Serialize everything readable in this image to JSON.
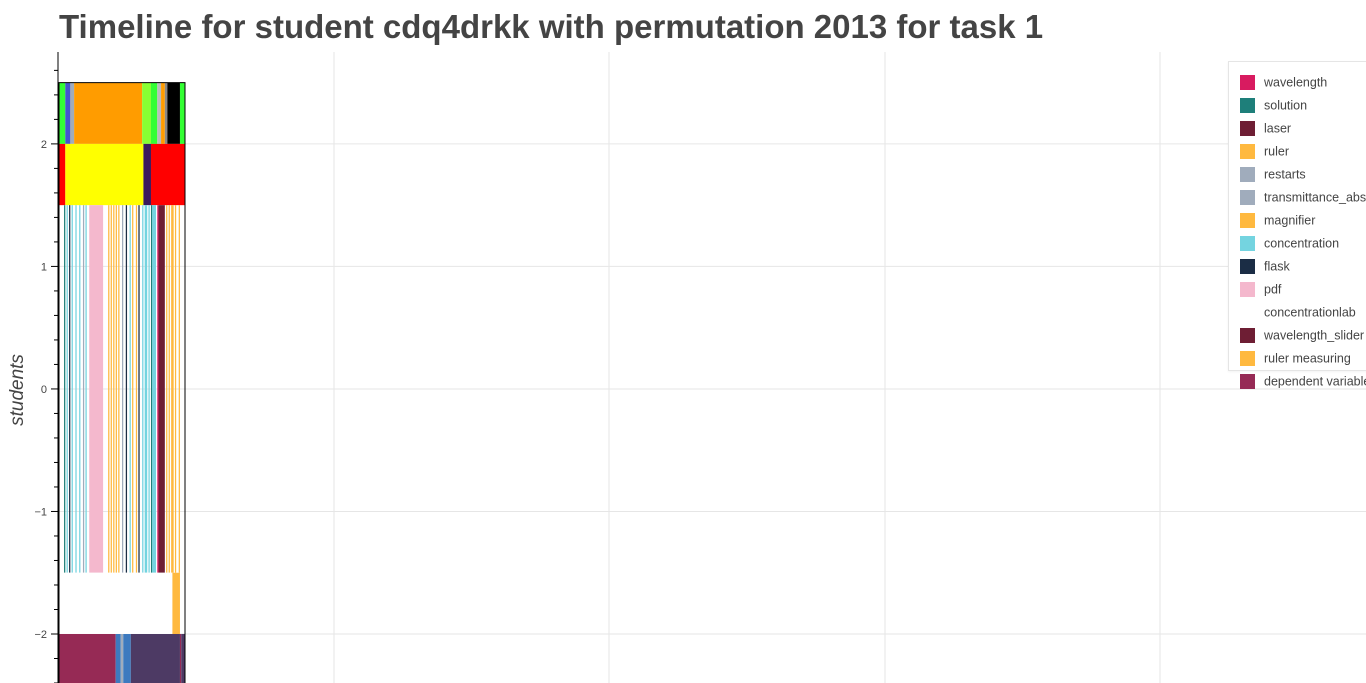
{
  "chart_data": {
    "type": "timeline",
    "title": "Timeline for student cdq4drkk with permutation 2013 for task 1",
    "ylabel": "students",
    "xlabel": "",
    "ylim": [
      -2.4,
      2.75
    ],
    "yticks": [
      2,
      1,
      0,
      -1,
      -2
    ],
    "ytick_labels": [
      "2",
      "1",
      "0",
      "−1",
      "−2"
    ],
    "grid": true,
    "legend_position": "top-right",
    "legend": [
      {
        "label": "wavelength",
        "color": "#d81b60"
      },
      {
        "label": "solution",
        "color": "#1e7f7a"
      },
      {
        "label": "laser",
        "color": "#6e1e34"
      },
      {
        "label": "ruler",
        "color": "#ffb93f"
      },
      {
        "label": "restarts",
        "color": "#a0acbc"
      },
      {
        "label": "transmittance_abs",
        "color": "#a0acbc"
      },
      {
        "label": "magnifier",
        "color": "#ffb93f"
      },
      {
        "label": "concentration",
        "color": "#74d4e0"
      },
      {
        "label": "flask",
        "color": "#1b2d45"
      },
      {
        "label": "pdf",
        "color": "#f4b8cd"
      },
      {
        "label": "concentrationlab",
        "color": "#ffffff"
      },
      {
        "label": "wavelength_slider",
        "color": "#6e1e34"
      },
      {
        "label": "ruler measuring",
        "color": "#ffb93f"
      },
      {
        "label": "dependent variable",
        "color": "#962a55"
      }
    ],
    "rows": [
      {
        "y_bottom": 2.0,
        "y_top": 2.5,
        "segments": [
          {
            "start": 0,
            "end": 5,
            "color": "#33ff33"
          },
          {
            "start": 5,
            "end": 9,
            "color": "#4455cc"
          },
          {
            "start": 9,
            "end": 12,
            "color": "#a0acbc"
          },
          {
            "start": 12,
            "end": 66,
            "color": "#ff9c00"
          },
          {
            "start": 66,
            "end": 73,
            "color": "#88ff33"
          },
          {
            "start": 73,
            "end": 78,
            "color": "#33ff33"
          },
          {
            "start": 78,
            "end": 81,
            "color": "#bbbbbb"
          },
          {
            "start": 81,
            "end": 84,
            "color": "#ff9c00"
          },
          {
            "start": 84,
            "end": 86,
            "color": "#888888"
          },
          {
            "start": 86,
            "end": 96,
            "color": "#000000"
          },
          {
            "start": 96,
            "end": 100,
            "color": "#33ff33"
          }
        ]
      },
      {
        "y_bottom": 1.5,
        "y_top": 2.0,
        "segments": [
          {
            "start": 0,
            "end": 5,
            "color": "#ff0000"
          },
          {
            "start": 5,
            "end": 67,
            "color": "#ffff00"
          },
          {
            "start": 67,
            "end": 73,
            "color": "#3a1a5e"
          },
          {
            "start": 73,
            "end": 100,
            "color": "#ff0000"
          }
        ]
      },
      {
        "y_bottom": -1.5,
        "y_top": 1.5,
        "segments": [
          {
            "start": 4,
            "end": 5,
            "color": "#1e7f7a"
          },
          {
            "start": 6,
            "end": 7,
            "color": "#74d4e0"
          },
          {
            "start": 8,
            "end": 9,
            "color": "#1b2d45"
          },
          {
            "start": 10,
            "end": 11,
            "color": "#74d4e0"
          },
          {
            "start": 13,
            "end": 14,
            "color": "#74d4e0"
          },
          {
            "start": 16,
            "end": 17,
            "color": "#74d4e0"
          },
          {
            "start": 19,
            "end": 20,
            "color": "#a0acbc"
          },
          {
            "start": 21,
            "end": 22,
            "color": "#74d4e0"
          },
          {
            "start": 24,
            "end": 35,
            "color": "#f4b8cd"
          },
          {
            "start": 39,
            "end": 40,
            "color": "#ffb93f"
          },
          {
            "start": 41,
            "end": 42,
            "color": "#ffb93f"
          },
          {
            "start": 43,
            "end": 44,
            "color": "#ffb93f"
          },
          {
            "start": 45,
            "end": 46,
            "color": "#ffb93f"
          },
          {
            "start": 47,
            "end": 48,
            "color": "#ffb93f"
          },
          {
            "start": 50,
            "end": 51,
            "color": "#a0acbc"
          },
          {
            "start": 53,
            "end": 54,
            "color": "#1b2d45"
          },
          {
            "start": 56,
            "end": 57,
            "color": "#74d4e0"
          },
          {
            "start": 58,
            "end": 59,
            "color": "#ffb93f"
          },
          {
            "start": 61,
            "end": 62,
            "color": "#ffb93f"
          },
          {
            "start": 63,
            "end": 64,
            "color": "#1b2d45"
          },
          {
            "start": 66,
            "end": 67,
            "color": "#74d4e0"
          },
          {
            "start": 68,
            "end": 70,
            "color": "#74d4e0"
          },
          {
            "start": 71,
            "end": 72,
            "color": "#74d4e0"
          },
          {
            "start": 73,
            "end": 74,
            "color": "#1e7f7a"
          },
          {
            "start": 74,
            "end": 77,
            "color": "#74d4e0"
          },
          {
            "start": 78,
            "end": 79,
            "color": "#d81b60"
          },
          {
            "start": 79,
            "end": 84,
            "color": "#6e1e34"
          },
          {
            "start": 85,
            "end": 86,
            "color": "#ffb93f"
          },
          {
            "start": 87,
            "end": 88,
            "color": "#ffb93f"
          },
          {
            "start": 89,
            "end": 91,
            "color": "#ffb93f"
          },
          {
            "start": 92,
            "end": 93,
            "color": "#ffb93f"
          },
          {
            "start": 95,
            "end": 96,
            "color": "#ffb93f"
          }
        ]
      },
      {
        "y_bottom": -2.0,
        "y_top": -1.5,
        "segments": [
          {
            "start": 0,
            "end": 90,
            "color": "#ffffff"
          },
          {
            "start": 90,
            "end": 96,
            "color": "#ffb93f"
          }
        ]
      },
      {
        "y_bottom": -2.5,
        "y_top": -2.0,
        "segments": [
          {
            "start": 0,
            "end": 45,
            "color": "#962a55"
          },
          {
            "start": 45,
            "end": 49,
            "color": "#3d7abf"
          },
          {
            "start": 49,
            "end": 51,
            "color": "#a0acbc"
          },
          {
            "start": 51,
            "end": 57,
            "color": "#3d7abf"
          },
          {
            "start": 57,
            "end": 96,
            "color": "#4d3a64"
          },
          {
            "start": 96,
            "end": 97,
            "color": "#962a55"
          },
          {
            "start": 97,
            "end": 100,
            "color": "#4d3a64"
          }
        ]
      }
    ]
  }
}
